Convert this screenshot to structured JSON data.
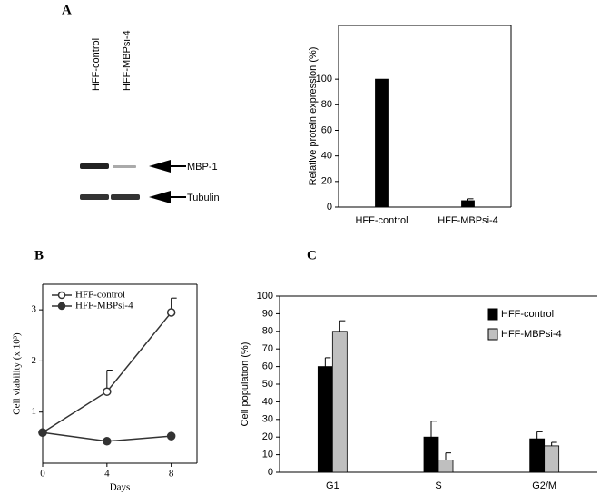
{
  "panel_labels": [
    "A",
    "B",
    "C"
  ],
  "blot": {
    "lanes": [
      "HFF-control",
      "HFF-MBPsi-4"
    ],
    "bands": [
      "MBP-1",
      "Tubulin"
    ]
  },
  "chart_data": [
    {
      "type": "bar",
      "y_label": "Relative protein expression (%)",
      "categories": [
        "HFF-control",
        "HFF-MBPsi-4"
      ],
      "values": [
        100,
        5
      ],
      "errors": [
        0,
        1.5
      ],
      "color": "#000000",
      "ylim": [
        0,
        142
      ],
      "yticks": [
        0,
        20,
        40,
        60,
        80,
        100
      ]
    },
    {
      "type": "line",
      "x_label": "Days",
      "y_label": "Cell viability (x 10³)",
      "x": [
        0,
        4,
        8
      ],
      "xlim": [
        0,
        9.6
      ],
      "xticks": [
        0,
        4,
        8
      ],
      "ylim": [
        0,
        3.5
      ],
      "yticks": [
        1,
        2,
        3
      ],
      "legend": "upper left",
      "series": [
        {
          "name": "HFF-control",
          "color": "#333333",
          "marker": "open",
          "values": [
            0.6,
            1.4,
            2.95
          ],
          "errors": [
            0,
            0.42,
            0.28
          ]
        },
        {
          "name": "HFF-MBPsi-4",
          "color": "#333333",
          "marker": "filled",
          "values": [
            0.6,
            0.43,
            0.53
          ],
          "errors": [
            0,
            0,
            0
          ]
        }
      ]
    },
    {
      "type": "bar",
      "y_label": "Cell population (%)",
      "categories": [
        "G1",
        "S",
        "G2/M"
      ],
      "ylim": [
        0,
        100
      ],
      "yticks": [
        0,
        10,
        20,
        30,
        40,
        50,
        60,
        70,
        80,
        90,
        100
      ],
      "legend": "upper right",
      "series": [
        {
          "name": "HFF-control",
          "color": "#000000",
          "values": [
            60,
            20,
            19
          ],
          "errors": [
            5,
            9,
            4
          ]
        },
        {
          "name": "HFF-MBPsi-4",
          "color": "#bfbfbf",
          "values": [
            80,
            7,
            15
          ],
          "errors": [
            6,
            4,
            2
          ]
        }
      ]
    }
  ]
}
